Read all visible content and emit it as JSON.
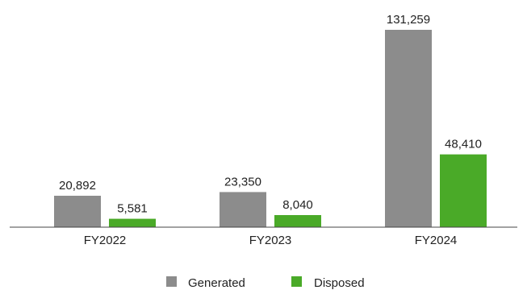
{
  "chart_data": {
    "type": "bar",
    "categories": [
      "FY2022",
      "FY2023",
      "FY2024"
    ],
    "series": [
      {
        "name": "Generated",
        "values": [
          20892,
          23350,
          131259
        ],
        "labels": [
          "20,892",
          "23,350",
          "131,259"
        ],
        "color": "#8c8c8c"
      },
      {
        "name": "Disposed",
        "values": [
          5581,
          8040,
          48410
        ],
        "labels": [
          "5,581",
          "8,040",
          "48,410"
        ],
        "color": "#4aaa28"
      }
    ],
    "ylim": [
      0,
      131259
    ],
    "grid": false,
    "legend_position": "bottom-center"
  }
}
